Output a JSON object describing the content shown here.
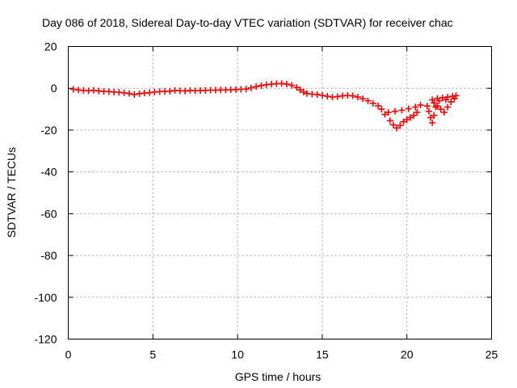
{
  "chart_data": {
    "type": "scatter",
    "title": "Day 086 of 2018, Sidereal Day-to-day VTEC variation (SDTVAR) for receiver chac",
    "xlabel": "GPS time / hours",
    "ylabel": "SDTVAR / TECUs",
    "xlim": [
      0,
      25
    ],
    "ylim": [
      -120,
      20
    ],
    "xticks": [
      0,
      5,
      10,
      15,
      20,
      25
    ],
    "yticks": [
      20,
      0,
      -20,
      -40,
      -60,
      -80,
      -100,
      -120
    ],
    "grid": true,
    "marker": "plus",
    "series": [
      {
        "name": "SDTVAR",
        "color": "#ff0000",
        "points": [
          [
            0.3,
            -0.5
          ],
          [
            0.6,
            -0.8
          ],
          [
            0.9,
            -1.0
          ],
          [
            1.2,
            -1.2
          ],
          [
            1.5,
            -1.0
          ],
          [
            1.8,
            -1.3
          ],
          [
            2.1,
            -1.5
          ],
          [
            2.4,
            -1.6
          ],
          [
            2.7,
            -1.8
          ],
          [
            3.0,
            -1.9
          ],
          [
            3.3,
            -2.2
          ],
          [
            3.6,
            -2.5
          ],
          [
            3.9,
            -3.0
          ],
          [
            4.2,
            -2.6
          ],
          [
            4.5,
            -2.3
          ],
          [
            4.8,
            -2.1
          ],
          [
            5.1,
            -1.8
          ],
          [
            5.4,
            -1.6
          ],
          [
            5.7,
            -1.5
          ],
          [
            6.0,
            -1.4
          ],
          [
            6.3,
            -1.0
          ],
          [
            6.6,
            -1.2
          ],
          [
            6.9,
            -1.3
          ],
          [
            7.2,
            -1.0
          ],
          [
            7.5,
            -1.2
          ],
          [
            7.8,
            -1.1
          ],
          [
            8.1,
            -1.0
          ],
          [
            8.4,
            -0.9
          ],
          [
            8.7,
            -0.9
          ],
          [
            9.0,
            -0.8
          ],
          [
            9.3,
            -0.8
          ],
          [
            9.6,
            -0.7
          ],
          [
            9.9,
            -0.6
          ],
          [
            10.2,
            -0.5
          ],
          [
            10.5,
            -0.4
          ],
          [
            10.8,
            0.2
          ],
          [
            11.1,
            0.8
          ],
          [
            11.4,
            1.3
          ],
          [
            11.7,
            1.7
          ],
          [
            12.0,
            2.0
          ],
          [
            12.3,
            2.2
          ],
          [
            12.6,
            2.3
          ],
          [
            12.9,
            2.0
          ],
          [
            13.2,
            1.4
          ],
          [
            13.5,
            0.4
          ],
          [
            13.7,
            -0.8
          ],
          [
            13.9,
            -1.8
          ],
          [
            14.1,
            -2.5
          ],
          [
            14.4,
            -2.8
          ],
          [
            14.7,
            -3.0
          ],
          [
            15.0,
            -3.4
          ],
          [
            15.3,
            -3.8
          ],
          [
            15.6,
            -4.2
          ],
          [
            15.9,
            -4.0
          ],
          [
            16.2,
            -3.6
          ],
          [
            16.5,
            -3.4
          ],
          [
            16.8,
            -3.6
          ],
          [
            17.1,
            -4.2
          ],
          [
            17.4,
            -5.0
          ],
          [
            17.7,
            -6.0
          ],
          [
            18.0,
            -7.2
          ],
          [
            18.3,
            -8.4
          ],
          [
            18.5,
            -10.0
          ],
          [
            18.7,
            -12.5
          ],
          [
            19.0,
            -15.5
          ],
          [
            19.2,
            -17.5
          ],
          [
            19.4,
            -19.0
          ],
          [
            19.6,
            -17.8
          ],
          [
            19.8,
            -16.0
          ],
          [
            20.0,
            -15.0
          ],
          [
            20.2,
            -14.0
          ],
          [
            20.4,
            -13.0
          ],
          [
            20.6,
            -11.5
          ],
          [
            18.9,
            -11.5
          ],
          [
            19.3,
            -11.0
          ],
          [
            19.7,
            -10.5
          ],
          [
            20.1,
            -9.8
          ],
          [
            20.5,
            -9.0
          ],
          [
            20.8,
            -8.0
          ],
          [
            21.2,
            -8.5
          ],
          [
            21.3,
            -11.0
          ],
          [
            21.4,
            -14.0
          ],
          [
            21.5,
            -16.5
          ],
          [
            21.6,
            -13.0
          ],
          [
            21.7,
            -9.0
          ],
          [
            21.5,
            -5.5
          ],
          [
            21.8,
            -4.8
          ],
          [
            22.1,
            -4.5
          ],
          [
            22.4,
            -4.2
          ],
          [
            22.7,
            -3.8
          ],
          [
            22.9,
            -3.5
          ],
          [
            22.6,
            -6.5
          ],
          [
            22.4,
            -9.0
          ],
          [
            22.2,
            -11.5
          ],
          [
            22.0,
            -10.0
          ],
          [
            21.8,
            -8.5
          ],
          [
            21.6,
            -7.0
          ],
          [
            21.9,
            -6.0
          ],
          [
            22.3,
            -5.5
          ],
          [
            22.8,
            -5.0
          ]
        ]
      }
    ]
  }
}
